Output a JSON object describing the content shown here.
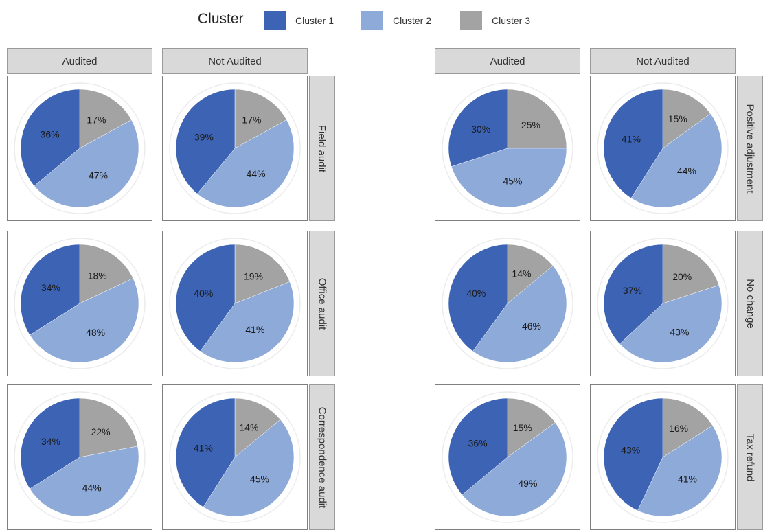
{
  "legend": {
    "title": "Cluster",
    "items": [
      {
        "label": "Cluster 1",
        "color": "#3c63b4"
      },
      {
        "label": "Cluster 2",
        "color": "#8eaad8"
      },
      {
        "label": "Cluster 3",
        "color": "#a3a3a3"
      }
    ]
  },
  "facets": {
    "columns": [
      "Audited",
      "Not Audited"
    ],
    "left_rows": [
      "Field audit",
      "Office audit",
      "Correspondence audit"
    ],
    "right_rows": [
      "Positive adjustment",
      "No change",
      "Tax refund"
    ]
  },
  "chart_data": [
    {
      "type": "pie",
      "title": "",
      "series_names": [
        "Cluster 1",
        "Cluster 2",
        "Cluster 3"
      ],
      "columns": [
        "Audited",
        "Not Audited"
      ],
      "rows": [
        "Field audit",
        "Office audit",
        "Correspondence audit"
      ],
      "pies": [
        [
          {
            "values": [
              36,
              47,
              17
            ],
            "labels": [
              "36%",
              "47%",
              "17%"
            ]
          },
          {
            "values": [
              39,
              44,
              17
            ],
            "labels": [
              "39%",
              "44%",
              "17%"
            ]
          }
        ],
        [
          {
            "values": [
              34,
              48,
              18
            ],
            "labels": [
              "34%",
              "48%",
              "18%"
            ]
          },
          {
            "values": [
              40,
              41,
              19
            ],
            "labels": [
              "40%",
              "41%",
              "19%"
            ]
          }
        ],
        [
          {
            "values": [
              34,
              44,
              22
            ],
            "labels": [
              "34%",
              "44%",
              "22%"
            ]
          },
          {
            "values": [
              41,
              45,
              14
            ],
            "labels": [
              "41%",
              "45%",
              "14%"
            ]
          }
        ]
      ]
    },
    {
      "type": "pie",
      "title": "",
      "series_names": [
        "Cluster 1",
        "Cluster 2",
        "Cluster 3"
      ],
      "columns": [
        "Audited",
        "Not Audited"
      ],
      "rows": [
        "Positive adjustment",
        "No change",
        "Tax refund"
      ],
      "pies": [
        [
          {
            "values": [
              30,
              45,
              25
            ],
            "labels": [
              "30%",
              "45%",
              "25%"
            ]
          },
          {
            "values": [
              41,
              44,
              15
            ],
            "labels": [
              "41%",
              "44%",
              "15%"
            ]
          }
        ],
        [
          {
            "values": [
              40,
              46,
              14
            ],
            "labels": [
              "40%",
              "46%",
              "14%"
            ]
          },
          {
            "values": [
              37,
              43,
              20
            ],
            "labels": [
              "37%",
              "43%",
              "20%"
            ]
          }
        ],
        [
          {
            "values": [
              36,
              49,
              15
            ],
            "labels": [
              "36%",
              "49%",
              "15%"
            ]
          },
          {
            "values": [
              43,
              41,
              16
            ],
            "labels": [
              "43%",
              "41%",
              "16%"
            ]
          }
        ]
      ]
    }
  ]
}
